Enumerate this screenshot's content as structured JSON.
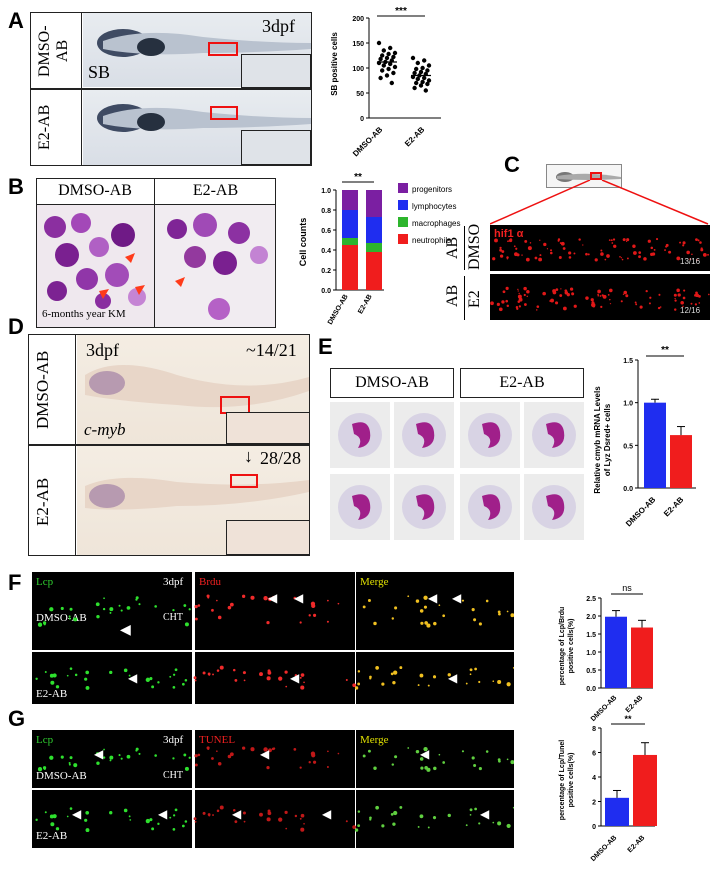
{
  "panels": {
    "A": {
      "letter": "A",
      "stage": "3dpf",
      "sb_label": "SB",
      "row1": "DMSO-AB",
      "row2": "E2-AB",
      "chart": {
        "ylabel": "SB positive cells",
        "sig": "***",
        "cats": [
          "DMSO-AB",
          "E2-AB"
        ],
        "yticks": [
          "0",
          "50",
          "100",
          "150",
          "200"
        ]
      }
    },
    "B": {
      "letter": "B",
      "head1": "DMSO-AB",
      "head2": "E2-AB",
      "caption": "6-months year  KM",
      "chart": {
        "ylabel": "Cell counts",
        "sig": "**",
        "cats": [
          "DMSO-AB",
          "E2-AB"
        ],
        "yticks": [
          "0.0",
          "0.2",
          "0.4",
          "0.6",
          "0.8",
          "1.0"
        ],
        "legend": [
          "progenitors",
          "lymphocytes",
          "macrophages",
          "neutrophils"
        ]
      }
    },
    "C": {
      "letter": "C",
      "marker": "hif1 α",
      "row1a": "AB",
      "row1b": "DMSO",
      "row2a": "AB",
      "row2b": "E2",
      "count1": "13/16",
      "count2": "12/16"
    },
    "D": {
      "letter": "D",
      "stage": "3dpf",
      "count1": "~14/21",
      "count2": "28/28",
      "gene": "c-myb",
      "row1": "DMSO-AB",
      "row2": "E2-AB"
    },
    "E": {
      "letter": "E",
      "head1": "DMSO-AB",
      "head2": "E2-AB",
      "chart": {
        "ylabel1": "Relative cmyb mRNA Levels",
        "ylabel2": "of Lyz Dsred+ cells",
        "sig": "**",
        "cats": [
          "DMSO-AB",
          "E2-AB"
        ],
        "yticks": [
          "0.0",
          "0.5",
          "1.0",
          "1.5"
        ]
      }
    },
    "F": {
      "letter": "F",
      "ch1": "Lcp",
      "ch2": "Brdu",
      "ch3": "Merge",
      "stage": "3dpf",
      "region": "CHT",
      "row1": "DMSO-AB",
      "row2": "E2-AB",
      "chart": {
        "ylabel1": "percentage of Lcp/Brdu",
        "ylabel2": "positive cells(%)",
        "sig": "ns",
        "cats": [
          "DMSO-AB",
          "E2-AB"
        ],
        "yticks": [
          "0.0",
          "0.5",
          "1.0",
          "1.5",
          "2.0",
          "2.5"
        ]
      }
    },
    "G": {
      "letter": "G",
      "ch1": "Lcp",
      "ch2": "TUNEL",
      "ch3": "Merge",
      "stage": "3dpf",
      "region": "CHT",
      "row1": "DMSO-AB",
      "row2": "E2-AB",
      "chart": {
        "ylabel1": "percentage of Lcp/Tunel",
        "ylabel2": "positive cells(%)",
        "sig": "**",
        "cats": [
          "DMSO-AB",
          "E2-AB"
        ],
        "yticks": [
          "0",
          "2",
          "4",
          "6",
          "8"
        ]
      }
    }
  },
  "colors": {
    "blue": "#1f2df0",
    "red": "#f01d1d",
    "purple": "#7b1fa2",
    "green": "#2db52d"
  },
  "chart_data": [
    {
      "type": "scatter",
      "panel": "A",
      "ylabel": "SB positive cells",
      "categories": [
        "DMSO-AB",
        "E2-AB"
      ],
      "ylim": [
        0,
        200
      ],
      "series": [
        {
          "values": [
            150,
            140,
            135,
            130,
            128,
            125,
            122,
            120,
            118,
            115,
            112,
            110,
            108,
            105,
            102,
            98,
            95,
            90,
            85,
            80,
            70
          ]
        },
        {
          "values": [
            120,
            115,
            110,
            105,
            100,
            98,
            95,
            92,
            90,
            88,
            85,
            82,
            80,
            78,
            75,
            72,
            70,
            68,
            65,
            60,
            55
          ]
        }
      ],
      "means": [
        112,
        85
      ]
    },
    {
      "type": "bar",
      "panel": "B",
      "ylabel": "Cell counts",
      "categories": [
        "DMSO-AB",
        "E2-AB"
      ],
      "ylim": [
        0,
        1.0
      ],
      "stacked": true,
      "series": [
        {
          "name": "neutrophils",
          "values": [
            0.45,
            0.38
          ]
        },
        {
          "name": "macrophages",
          "values": [
            0.07,
            0.09
          ]
        },
        {
          "name": "lymphocytes",
          "values": [
            0.28,
            0.26
          ]
        },
        {
          "name": "progenitors",
          "values": [
            0.2,
            0.27
          ]
        }
      ]
    },
    {
      "type": "bar",
      "panel": "E",
      "ylabel": "Relative cmyb mRNA Levels of Lyz Dsred+ cells",
      "categories": [
        "DMSO-AB",
        "E2-AB"
      ],
      "ylim": [
        0,
        1.5
      ],
      "values": [
        1.0,
        0.62
      ],
      "errors": [
        0.04,
        0.1
      ]
    },
    {
      "type": "bar",
      "panel": "F",
      "ylabel": "percentage of Lcp/Brdu positive cells(%)",
      "categories": [
        "DMSO-AB",
        "E2-AB"
      ],
      "ylim": [
        0,
        2.5
      ],
      "values": [
        1.98,
        1.68
      ],
      "errors": [
        0.17,
        0.2
      ]
    },
    {
      "type": "bar",
      "panel": "G",
      "ylabel": "percentage of Lcp/Tunel positive cells(%)",
      "categories": [
        "DMSO-AB",
        "E2-AB"
      ],
      "ylim": [
        0,
        8
      ],
      "values": [
        2.3,
        5.8
      ],
      "errors": [
        0.6,
        1.0
      ]
    }
  ]
}
